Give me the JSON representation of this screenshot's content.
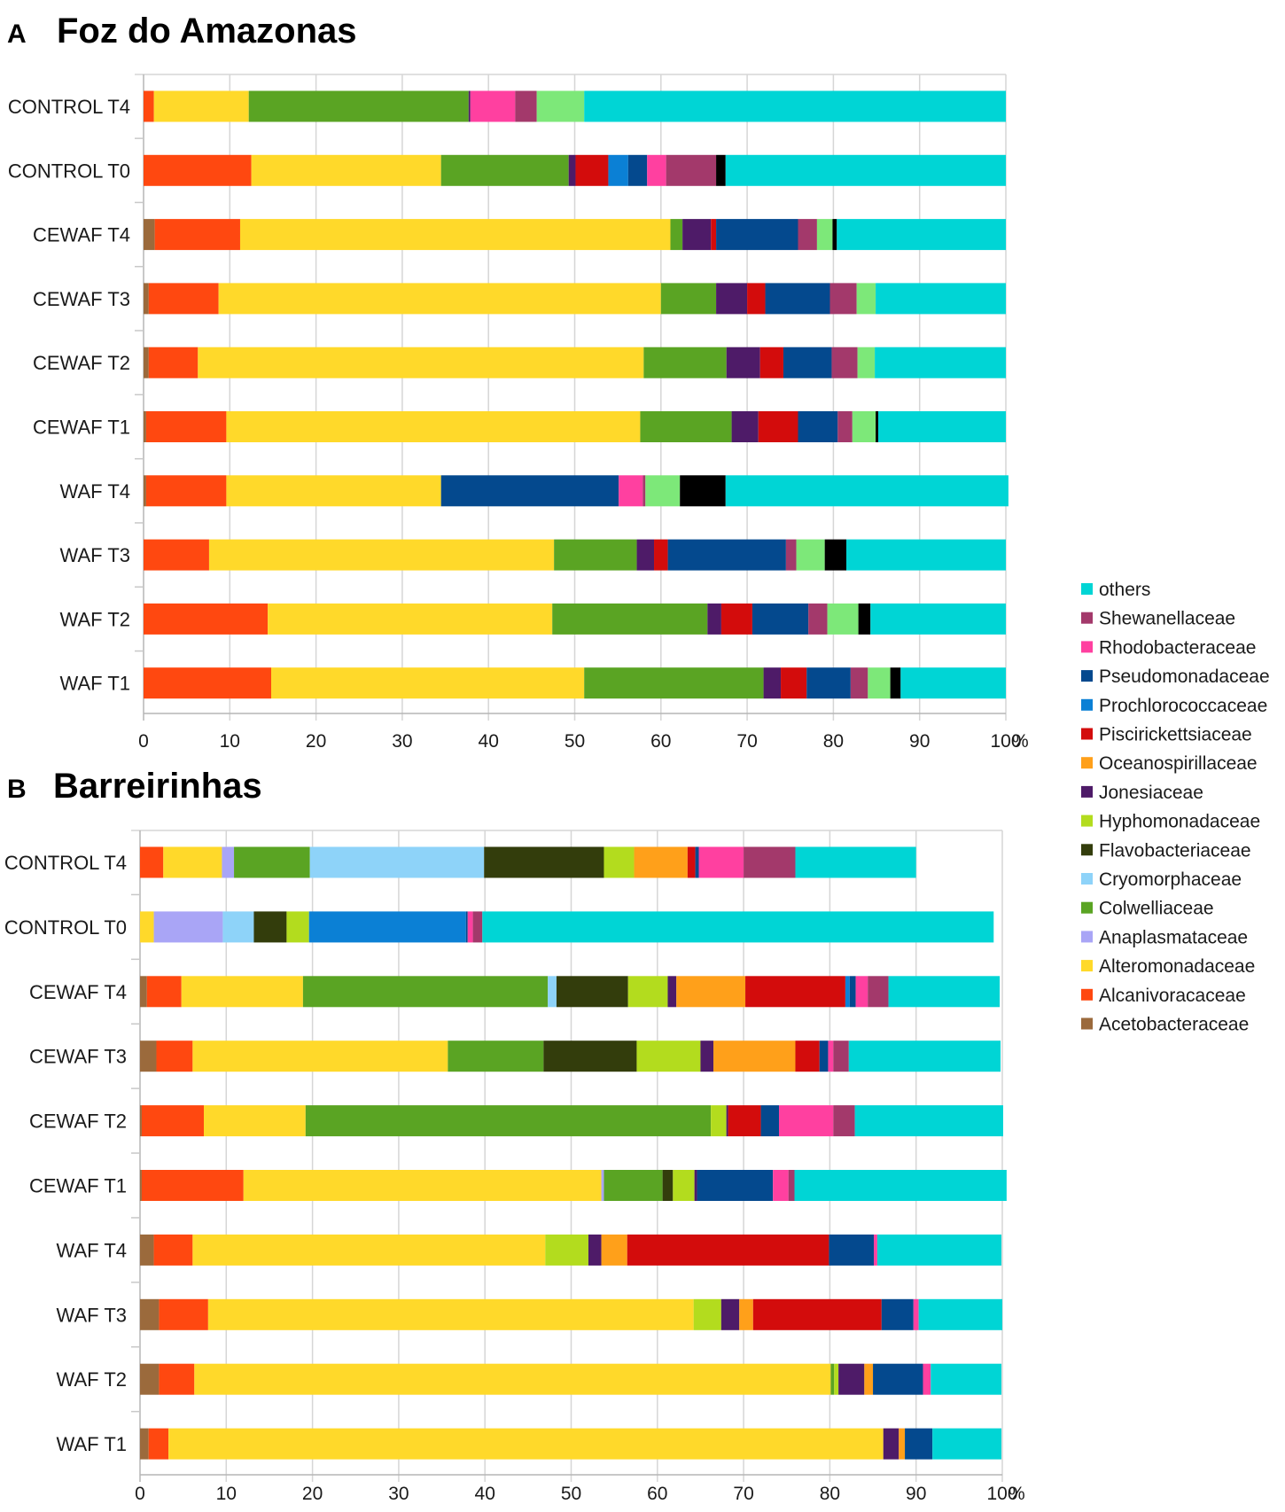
{
  "families": [
    "Acetobacteraceae",
    "Alcanivoracaceae",
    "Alteromonadaceae",
    "Anaplasmataceae",
    "Colwelliaceae",
    "Cryomorphaceae",
    "Flavobacteriaceae",
    "Hyphomonadaceae",
    "Jonesiaceae",
    "Oceanospirillaceae",
    "Piscirickettsiaceae",
    "Prochlorococcaceae",
    "Pseudomonadaceae",
    "Rhodobacteraceae",
    "Shewanellaceae",
    "others"
  ],
  "colors": {
    "Acetobacteraceae": "#9b6a3c",
    "Alcanivoracaceae": "#ff4810",
    "Alteromonadaceae": "#ffd92a",
    "Anaplasmataceae": "#a9a5f6",
    "Colwelliaceae": "#5aa423",
    "Cryomorphaceae": "#8ed3f9",
    "Flavobacteriaceae": "#333d0c",
    "Hyphomonadaceae": "#b3dc1e",
    "Jonesiaceae": "#4e1b68",
    "Oceanospirillaceae": "#ffa01a",
    "Piscirickettsiaceae": "#d30c0c",
    "Prochlorococcaceae": "#0b80d5",
    "Pseudomonadaceae": "#04498e",
    "Rhodobacteraceae": "#ff40a0",
    "Shewanellaceae": "#a3396b",
    "others": "#00d5d5",
    "black": "#000000",
    "lightgreen": "#7de879"
  },
  "legend_order": [
    "others",
    "Shewanellaceae",
    "Rhodobacteraceae",
    "Pseudomonadaceae",
    "Prochlorococcaceae",
    "Piscirickettsiaceae",
    "Oceanospirillaceae",
    "Jonesiaceae",
    "Hyphomonadaceae",
    "Flavobacteriaceae",
    "Cryomorphaceae",
    "Colwelliaceae",
    "Anaplasmataceae",
    "Alteromonadaceae",
    "Alcanivoracaceae",
    "Acetobacteraceae"
  ],
  "chart_data": [
    {
      "type": "bar",
      "orientation": "horizontal",
      "stacked": true,
      "panel": "A",
      "title": "Foz do Amazonas",
      "xlabel": "%",
      "xlim": [
        0,
        100
      ],
      "xticks": [
        0,
        10,
        20,
        30,
        40,
        50,
        60,
        70,
        80,
        90,
        100
      ],
      "grid": true,
      "categories": [
        "CONTROL T4",
        "CONTROL T0",
        "CEWAF T4",
        "CEWAF T3",
        "CEWAF T2",
        "CEWAF T1",
        "WAF T4",
        "WAF T3",
        "WAF T2",
        "WAF T1"
      ],
      "series": [
        {
          "name": "Acetobacteraceae",
          "values": [
            0,
            0,
            1.3,
            0.6,
            0.6,
            0.3,
            0.3,
            0,
            0,
            0
          ]
        },
        {
          "name": "Alcanivoracaceae",
          "values": [
            1.2,
            12.5,
            9.9,
            8.1,
            5.7,
            9.3,
            9.3,
            7.6,
            14.4,
            14.8
          ]
        },
        {
          "name": "Alteromonadaceae",
          "values": [
            11,
            22,
            49.9,
            51.3,
            51.7,
            48,
            24.9,
            40,
            33,
            36.3
          ]
        },
        {
          "name": "Colwelliaceae",
          "values": [
            25.5,
            14.8,
            1.4,
            6.4,
            9.6,
            10.6,
            0,
            9.6,
            18,
            20.8
          ]
        },
        {
          "name": "Jonesiaceae",
          "values": [
            0.2,
            0.8,
            3.3,
            3.6,
            3.9,
            3.1,
            0,
            2,
            1.6,
            2
          ]
        },
        {
          "name": "Piscirickettsiaceae",
          "values": [
            0,
            3.8,
            0.6,
            2.1,
            2.7,
            4.6,
            0,
            1.6,
            3.6,
            3
          ]
        },
        {
          "name": "Prochlorococcaceae",
          "values": [
            0,
            2.3,
            0,
            0,
            0,
            0,
            0,
            0,
            0,
            0
          ]
        },
        {
          "name": "Pseudomonadaceae",
          "values": [
            0,
            2.2,
            9.5,
            7.5,
            5.6,
            4.6,
            20.6,
            13.7,
            6.5,
            5.1
          ]
        },
        {
          "name": "Rhodobacteraceae",
          "values": [
            5.2,
            2.2,
            0,
            0,
            0,
            0,
            2.8,
            0,
            0,
            0
          ]
        },
        {
          "name": "Shewanellaceae",
          "values": [
            2.5,
            5.8,
            2.2,
            3.1,
            3,
            1.7,
            0.3,
            1.2,
            2.2,
            2
          ]
        },
        {
          "name": "Hyphomonadaceae (light green)",
          "values": [
            5.5,
            0,
            1.8,
            2.2,
            2,
            2.7,
            4,
            3.3,
            3.6,
            2.6
          ]
        },
        {
          "name": "Flavobacteriaceae (black)",
          "values": [
            0,
            1.1,
            0.5,
            0,
            0,
            0.3,
            5.3,
            2.5,
            1.4,
            1.2
          ]
        },
        {
          "name": "others",
          "values": [
            48.9,
            32.5,
            19.6,
            15.1,
            15.2,
            14.8,
            32.8,
            18.5,
            15.7,
            12.2
          ]
        }
      ]
    },
    {
      "type": "bar",
      "orientation": "horizontal",
      "stacked": true,
      "panel": "B",
      "title": "Barreirinhas",
      "xlabel": "%",
      "xlim": [
        0,
        100
      ],
      "xticks": [
        0,
        10,
        20,
        30,
        40,
        50,
        60,
        70,
        80,
        90,
        100
      ],
      "grid": true,
      "categories": [
        "CONTROL T4",
        "CONTROL T0",
        "CEWAF T4",
        "CEWAF T3",
        "CEWAF T2",
        "CEWAF T1",
        "WAF T4",
        "WAF T3",
        "WAF T2",
        "WAF T1"
      ],
      "series": [
        {
          "name": "Acetobacteraceae",
          "values": [
            0,
            0,
            0.8,
            1.9,
            0.2,
            0.2,
            1.6,
            2.2,
            2.2,
            1
          ]
        },
        {
          "name": "Alcanivoracaceae",
          "values": [
            2.7,
            0,
            4,
            4.2,
            7.2,
            11.8,
            4.5,
            5.7,
            4.1,
            2.3
          ]
        },
        {
          "name": "Alteromonadaceae",
          "values": [
            6.8,
            1.6,
            14.1,
            29.6,
            11.8,
            41.5,
            40.9,
            56.3,
            73.8,
            82.9
          ]
        },
        {
          "name": "Anaplasmataceae",
          "values": [
            1.4,
            8,
            0,
            0,
            0,
            0.3,
            0,
            0,
            0,
            0
          ]
        },
        {
          "name": "Colwelliaceae",
          "values": [
            8.8,
            0,
            28.4,
            11.1,
            47,
            6.8,
            0,
            0,
            0.4,
            0
          ]
        },
        {
          "name": "Cryomorphaceae",
          "values": [
            20.2,
            3.6,
            1,
            0,
            0,
            0,
            0,
            0,
            0,
            0
          ]
        },
        {
          "name": "Flavobacteriaceae",
          "values": [
            13.9,
            3.8,
            8.3,
            10.8,
            0,
            1.2,
            0,
            0,
            0,
            0
          ]
        },
        {
          "name": "Hyphomonadaceae",
          "values": [
            3.5,
            2.6,
            4.6,
            7.4,
            1.8,
            2.5,
            5,
            3.2,
            0.5,
            0
          ]
        },
        {
          "name": "Jonesiaceae",
          "values": [
            0,
            0,
            1,
            1.5,
            0.2,
            0.3,
            1.5,
            2.1,
            3,
            1.8
          ]
        },
        {
          "name": "Oceanospirillaceae",
          "values": [
            6.2,
            0,
            8,
            9.5,
            0,
            0,
            3,
            1.6,
            1,
            0.7
          ]
        },
        {
          "name": "Piscirickettsiaceae",
          "values": [
            0.9,
            0,
            11.6,
            2.8,
            3.8,
            0,
            23.4,
            14.9,
            0,
            0
          ]
        },
        {
          "name": "Prochlorococcaceae",
          "values": [
            0,
            18.2,
            0.5,
            0,
            0,
            0,
            0,
            0,
            0,
            0
          ]
        },
        {
          "name": "Pseudomonadaceae",
          "values": [
            0.4,
            0.2,
            0.7,
            1,
            2.1,
            8.8,
            5.2,
            3.7,
            5.8,
            3.2
          ]
        },
        {
          "name": "Rhodobacteraceae",
          "values": [
            5.2,
            0.6,
            1.4,
            0.6,
            6.3,
            1.8,
            0.4,
            0.6,
            0.9,
            0
          ]
        },
        {
          "name": "Shewanellaceae",
          "values": [
            6,
            1.1,
            2.4,
            1.8,
            2.5,
            0.7,
            0,
            0,
            0,
            0
          ]
        },
        {
          "name": "others",
          "values": [
            14,
            59.3,
            12.9,
            17.6,
            17.2,
            24.6,
            14.4,
            9.7,
            8.2,
            8
          ]
        }
      ]
    }
  ]
}
